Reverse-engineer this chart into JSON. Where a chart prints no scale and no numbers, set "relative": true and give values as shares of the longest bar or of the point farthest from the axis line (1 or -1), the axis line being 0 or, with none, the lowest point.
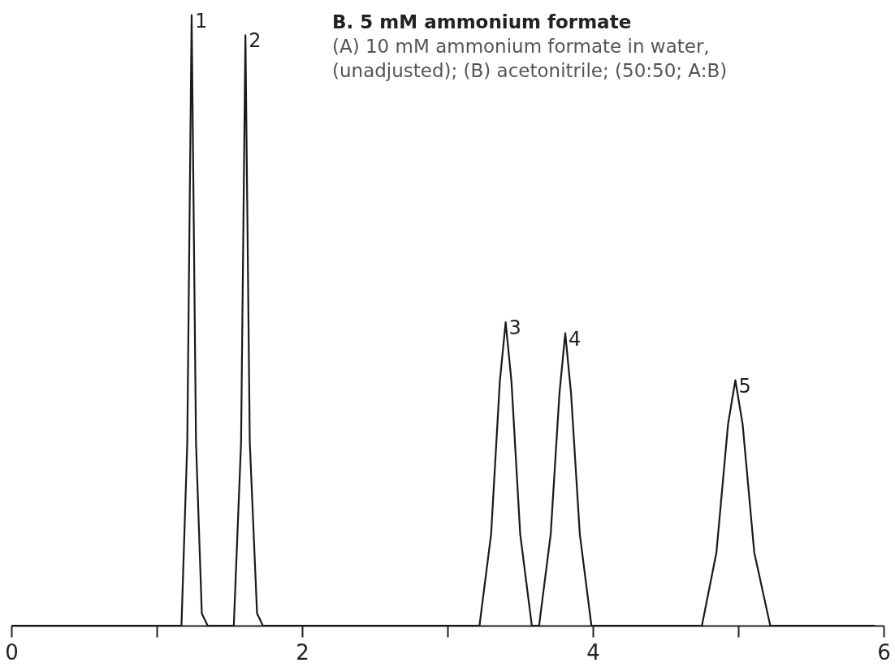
{
  "chart_data": {
    "type": "line",
    "relative": true,
    "title": "B. 5 mM ammonium formate",
    "annotations": [
      "(A) 10 mM ammonium formate in water,",
      "(unadjusted); (B) acetonitrile; (50:50; A:B)",
      {
        "text": "1",
        "x": 1.24,
        "y": 1
      },
      {
        "text": "2",
        "x": 1.61,
        "y": 0.967
      },
      {
        "text": "3",
        "x": 3.4,
        "y": 0.497
      },
      {
        "text": "4",
        "x": 3.81,
        "y": 0.479
      },
      {
        "text": "5",
        "x": 4.98,
        "y": 0.402
      }
    ],
    "xlim": [
      0,
      6
    ],
    "xticks": [
      0,
      {
        "value": 1,
        "label": null
      },
      2,
      {
        "value": 3,
        "label": null
      },
      4,
      {
        "value": 5,
        "label": null
      },
      6
    ],
    "grid": false,
    "marker": "none",
    "line_style": "solid",
    "series": [
      {
        "color": "#1a1a1a",
        "x": [
          0,
          1.17,
          1.21,
          1.24,
          1.27,
          1.31,
          1.35,
          1.53,
          1.58,
          1.61,
          1.64,
          1.69,
          1.73,
          3.22,
          3.3,
          3.36,
          3.4,
          3.44,
          3.5,
          3.58,
          3.63,
          3.71,
          3.77,
          3.81,
          3.85,
          3.91,
          3.99,
          4.75,
          4.85,
          4.93,
          4.98,
          5.03,
          5.11,
          5.22,
          5.94
        ],
        "values": [
          0,
          0,
          0.3,
          1,
          0.3,
          0.02,
          0,
          0,
          0.3,
          0.967,
          0.3,
          0.02,
          0,
          0,
          0.15,
          0.4,
          0.497,
          0.4,
          0.15,
          0,
          0,
          0.15,
          0.38,
          0.479,
          0.38,
          0.15,
          0,
          0,
          0.12,
          0.33,
          0.402,
          0.33,
          0.12,
          0,
          0
        ]
      }
    ]
  }
}
